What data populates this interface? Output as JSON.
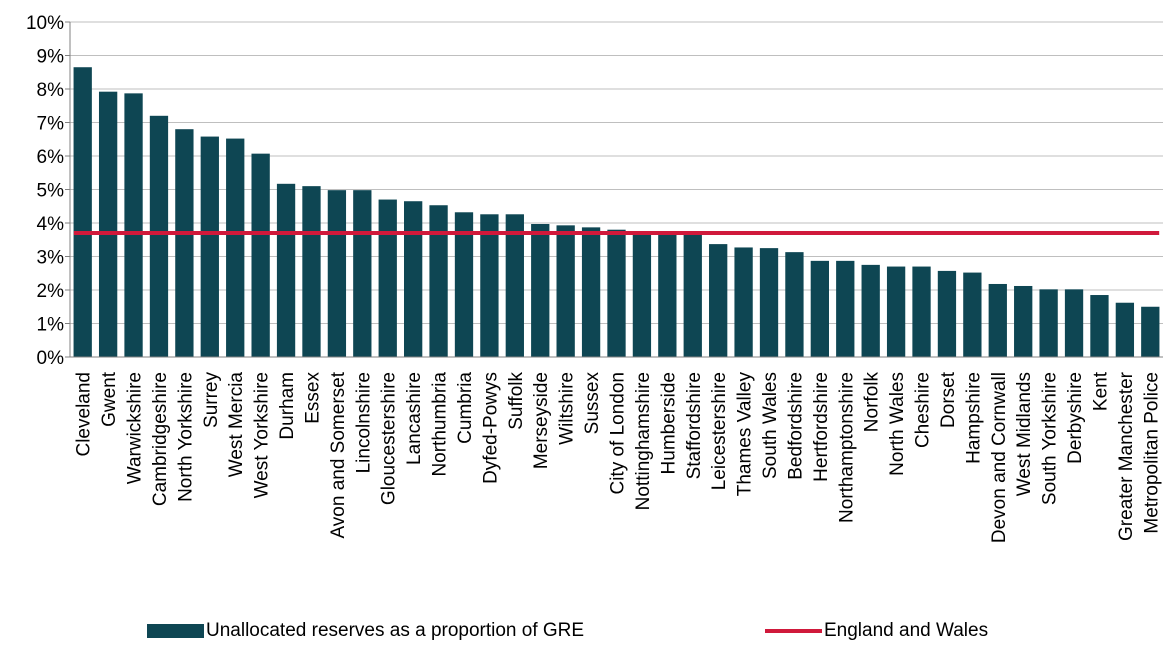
{
  "chart_data": {
    "type": "bar",
    "categories": [
      "Cleveland",
      "Gwent",
      "Warwickshire",
      "Cambridgeshire",
      "North Yorkshire",
      "Surrey",
      "West Mercia",
      "West Yorkshire",
      "Durham",
      "Essex",
      "Avon and Somerset",
      "Lincolnshire",
      "Gloucestershire",
      "Lancashire",
      "Northumbria",
      "Cumbria",
      "Dyfed-Powys",
      "Suffolk",
      "Merseyside",
      "Wiltshire",
      "Sussex",
      "City of London",
      "Nottinghamshire",
      "Humberside",
      "Staffordshire",
      "Leicestershire",
      "Thames Valley",
      "South Wales",
      "Bedfordshire",
      "Hertfordshire",
      "Northamptonshire",
      "Norfolk",
      "North Wales",
      "Cheshire",
      "Dorset",
      "Hampshire",
      "Devon and Cornwall",
      "West Midlands",
      "South Yorkshire",
      "Derbyshire",
      "Kent",
      "Greater Manchester",
      "Metropolitan Police"
    ],
    "series": [
      {
        "name": "Unallocated reserves as a proportion of GRE",
        "values": [
          8.65,
          7.92,
          7.87,
          7.2,
          6.8,
          6.58,
          6.52,
          6.07,
          5.17,
          5.1,
          4.98,
          4.98,
          4.7,
          4.65,
          4.53,
          4.32,
          4.26,
          4.26,
          3.97,
          3.93,
          3.87,
          3.8,
          3.7,
          3.65,
          3.65,
          3.37,
          3.27,
          3.25,
          3.13,
          2.87,
          2.87,
          2.75,
          2.7,
          2.7,
          2.57,
          2.52,
          2.18,
          2.12,
          2.02,
          2.02,
          1.85,
          1.62,
          1.5
        ],
        "color": "#0e4653"
      }
    ],
    "reference_line": {
      "name": "England and Wales",
      "value": 3.7,
      "color": "#d0193b"
    },
    "ylim": [
      0,
      10
    ],
    "yticks": [
      0,
      1,
      2,
      3,
      4,
      5,
      6,
      7,
      8,
      9,
      10
    ],
    "ytick_format": "percent",
    "grid": true,
    "legend_position": "bottom"
  }
}
